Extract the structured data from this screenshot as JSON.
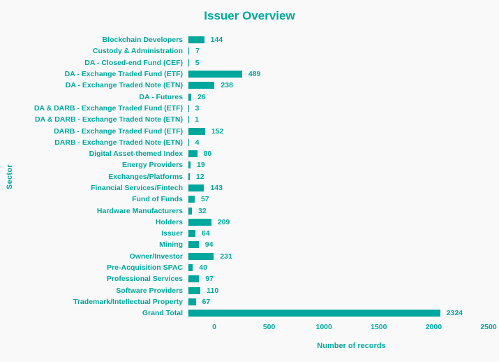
{
  "colors": {
    "accent": "#00a79c",
    "background": "#f9f9f9"
  },
  "chart_data": {
    "type": "bar",
    "orientation": "horizontal",
    "title": "Issuer Overview",
    "xlabel": "Number of records",
    "ylabel": "Sector",
    "xlim": [
      0,
      2500
    ],
    "xticks": [
      0,
      500,
      1000,
      1500,
      2000,
      2500
    ],
    "grid": false,
    "legend": false,
    "categories": [
      "Blockchain Developers",
      "Custody & Administration",
      "DA - Closed-end Fund (CEF)",
      "DA - Exchange Traded Fund (ETF)",
      "DA - Exchange Traded Note (ETN)",
      "DA - Futures",
      "DA & DARB - Exchange Traded Fund (ETF)",
      "DA & DARB - Exchange Traded Note (ETN)",
      "DARB - Exchange Traded Fund (ETF)",
      "DARB - Exchange Traded Note (ETN)",
      "Digital Asset-themed Index",
      "Energy Providers",
      "Exchanges/Platforms",
      "Financial Services/Fintech",
      "Fund of Funds",
      "Hardware Manufacturers",
      "Holders",
      "Issuer",
      "Mining",
      "Owner/Investor",
      "Pre-Acquisition SPAC",
      "Professional Services",
      "Software Providers",
      "Trademark/Intellectual Property",
      "Grand Total"
    ],
    "values": [
      144,
      7,
      5,
      489,
      238,
      26,
      3,
      1,
      152,
      4,
      80,
      19,
      12,
      143,
      57,
      32,
      209,
      64,
      94,
      231,
      40,
      97,
      110,
      67,
      2324
    ]
  }
}
